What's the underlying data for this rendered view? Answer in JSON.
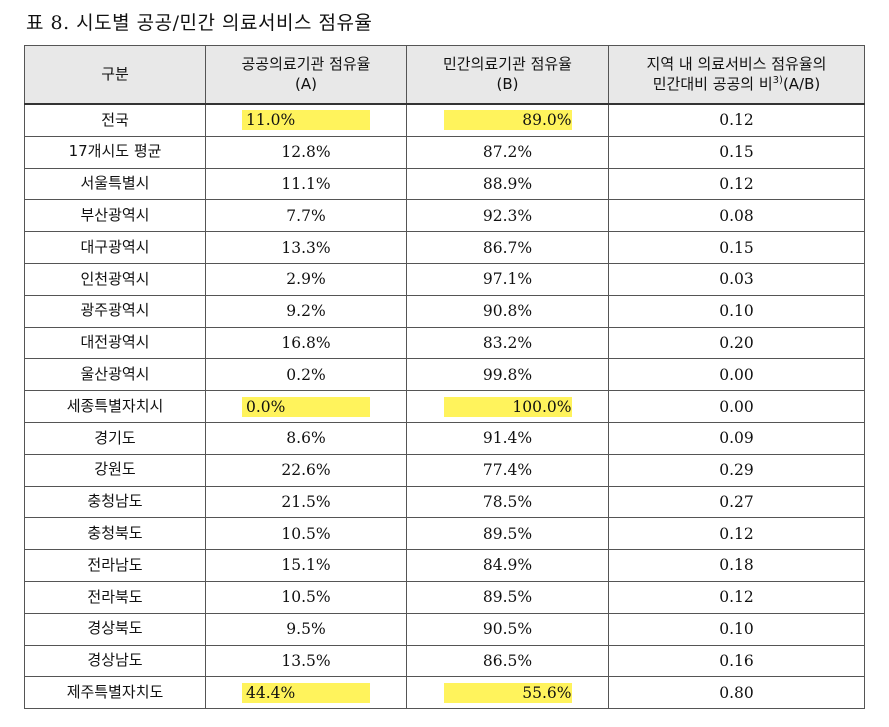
{
  "title": "표 8. 시도별 공공/민간 의료서비스 점유율",
  "columns": [
    {
      "line1": "구분",
      "line2": ""
    },
    {
      "line1": "공공의료기관 점유율",
      "line2": "(A)"
    },
    {
      "line1": "민간의료기관 점유율",
      "line2": "(B)"
    },
    {
      "line1": "지역 내 의료서비스 점유율의",
      "line2a": "민간대비 공공의 비",
      "line2sup": "3)",
      "line2b": "(A/B)"
    }
  ],
  "rows": [
    {
      "region": "전국",
      "public": "11.0%",
      "private": "89.0%",
      "ratio": "0.12",
      "highlight": true
    },
    {
      "region": "17개시도 평균",
      "public": "12.8%",
      "private": "87.2%",
      "ratio": "0.15",
      "highlight": false
    },
    {
      "region": "서울특별시",
      "public": "11.1%",
      "private": "88.9%",
      "ratio": "0.12",
      "highlight": false
    },
    {
      "region": "부산광역시",
      "public": "7.7%",
      "private": "92.3%",
      "ratio": "0.08",
      "highlight": false
    },
    {
      "region": "대구광역시",
      "public": "13.3%",
      "private": "86.7%",
      "ratio": "0.15",
      "highlight": false
    },
    {
      "region": "인천광역시",
      "public": "2.9%",
      "private": "97.1%",
      "ratio": "0.03",
      "highlight": false
    },
    {
      "region": "광주광역시",
      "public": "9.2%",
      "private": "90.8%",
      "ratio": "0.10",
      "highlight": false
    },
    {
      "region": "대전광역시",
      "public": "16.8%",
      "private": "83.2%",
      "ratio": "0.20",
      "highlight": false
    },
    {
      "region": "울산광역시",
      "public": "0.2%",
      "private": "99.8%",
      "ratio": "0.00",
      "highlight": false
    },
    {
      "region": "세종특별자치시",
      "public": "0.0%",
      "private": "100.0%",
      "ratio": "0.00",
      "highlight": true
    },
    {
      "region": "경기도",
      "public": "8.6%",
      "private": "91.4%",
      "ratio": "0.09",
      "highlight": false
    },
    {
      "region": "강원도",
      "public": "22.6%",
      "private": "77.4%",
      "ratio": "0.29",
      "highlight": false
    },
    {
      "region": "충청남도",
      "public": "21.5%",
      "private": "78.5%",
      "ratio": "0.27",
      "highlight": false
    },
    {
      "region": "충청북도",
      "public": "10.5%",
      "private": "89.5%",
      "ratio": "0.12",
      "highlight": false
    },
    {
      "region": "전라남도",
      "public": "15.1%",
      "private": "84.9%",
      "ratio": "0.18",
      "highlight": false
    },
    {
      "region": "전라북도",
      "public": "10.5%",
      "private": "89.5%",
      "ratio": "0.12",
      "highlight": false
    },
    {
      "region": "경상북도",
      "public": "9.5%",
      "private": "90.5%",
      "ratio": "0.10",
      "highlight": false
    },
    {
      "region": "경상남도",
      "public": "13.5%",
      "private": "86.5%",
      "ratio": "0.16",
      "highlight": false
    },
    {
      "region": "제주특별자치도",
      "public": "44.4%",
      "private": "55.6%",
      "ratio": "0.80",
      "highlight": true
    }
  ],
  "colors": {
    "highlight": "#fff35c",
    "header_bg": "#e8e8e8",
    "border": "#555555"
  }
}
